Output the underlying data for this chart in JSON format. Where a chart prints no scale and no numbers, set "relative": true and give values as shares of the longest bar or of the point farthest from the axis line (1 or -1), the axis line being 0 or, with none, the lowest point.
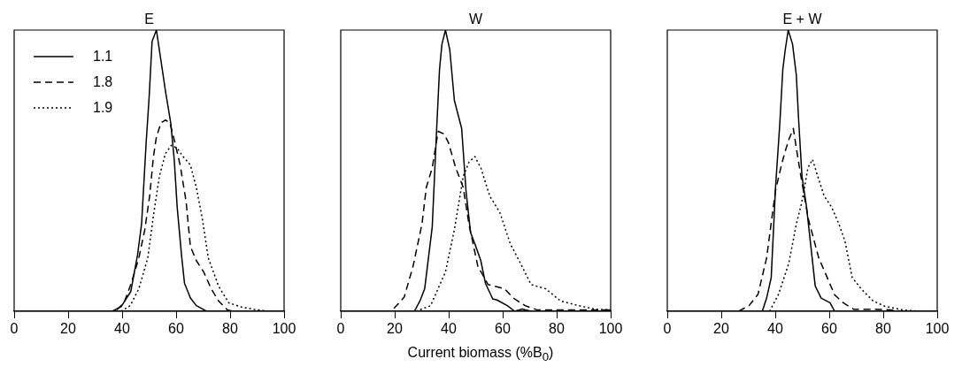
{
  "chart_data": [
    {
      "type": "line",
      "title": "E",
      "relative": true,
      "xlim": [
        0,
        100
      ],
      "xticks": [
        0,
        20,
        40,
        60,
        80,
        100
      ],
      "legend": "top left",
      "grid": false,
      "tick_labels": "x",
      "marker": "none",
      "series": [
        {
          "name": "1.1",
          "color": "#000000",
          "line_style": "solid",
          "x": [
            36.3,
            39.6,
            43.2,
            45.7,
            47.2,
            48.9,
            50.0,
            51.1,
            52.7,
            54.4,
            56.1,
            58.0,
            59.3,
            60.4,
            62.0,
            63.1,
            65.3,
            67.5,
            71.3
          ],
          "values": [
            0,
            0.016,
            0.07,
            0.2,
            0.31,
            0.6,
            0.76,
            0.96,
            1.0,
            0.89,
            0.78,
            0.67,
            0.54,
            0.37,
            0.2,
            0.1,
            0.047,
            0.02,
            0
          ]
        },
        {
          "name": "1.8",
          "color": "#000000",
          "line_style": "dashed",
          "x": [
            38,
            40.7,
            43.4,
            46.2,
            48.4,
            50.2,
            51.6,
            52.7,
            54.4,
            56,
            57.7,
            59.3,
            61.5,
            63.7,
            65.3,
            67.5,
            70.2,
            73,
            75.7,
            79,
            81
          ],
          "values": [
            0.005,
            0.03,
            0.1,
            0.19,
            0.29,
            0.41,
            0.55,
            0.62,
            0.67,
            0.68,
            0.67,
            0.61,
            0.52,
            0.39,
            0.23,
            0.18,
            0.14,
            0.08,
            0.037,
            0.005,
            0
          ]
        },
        {
          "name": "1.9",
          "color": "#000000",
          "line_style": "dotted",
          "x": [
            39.6,
            43,
            46.2,
            49.5,
            51.6,
            53.8,
            56,
            58.2,
            60.4,
            62.6,
            65.3,
            67.5,
            69.7,
            71.9,
            75.7,
            79.5,
            84.5,
            88.9,
            94.3
          ],
          "values": [
            0,
            0.02,
            0.08,
            0.19,
            0.34,
            0.48,
            0.56,
            0.59,
            0.58,
            0.55,
            0.52,
            0.44,
            0.33,
            0.19,
            0.09,
            0.03,
            0.014,
            0.007,
            0
          ]
        }
      ]
    },
    {
      "type": "line",
      "title": "W",
      "xlabel": "Current biomass (%B$_{0}$)",
      "relative": true,
      "xlim": [
        0,
        100
      ],
      "xticks": [
        0,
        20,
        40,
        60,
        80,
        100
      ],
      "grid": false,
      "tick_labels": "x",
      "marker": "none",
      "series": [
        {
          "color": "#000000",
          "line_style": "solid",
          "x": [
            27.3,
            29.5,
            31.1,
            33.9,
            35.5,
            36.6,
            37.5,
            38.8,
            40.4,
            42.1,
            44.8,
            46.4,
            48.1,
            49.7,
            51.9,
            53.6,
            56.3,
            57.9,
            61.7,
            64.5,
            67.2,
            70.5
          ],
          "values": [
            0,
            0.04,
            0.08,
            0.3,
            0.64,
            0.86,
            0.95,
            1.0,
            0.93,
            0.75,
            0.65,
            0.43,
            0.28,
            0.24,
            0.18,
            0.1,
            0.044,
            0.04,
            0.02,
            0,
            0.008,
            0
          ]
        },
        {
          "color": "#000000",
          "line_style": "dashed",
          "x": [
            19.7,
            23.5,
            26.8,
            30.1,
            31.7,
            33.9,
            36.1,
            38.3,
            39.9,
            42.6,
            45.4,
            47.5,
            50.8,
            54.6,
            60.7,
            63.9,
            68.3,
            72.7,
            84.7,
            100
          ],
          "values": [
            0.01,
            0.05,
            0.16,
            0.31,
            0.44,
            0.51,
            0.64,
            0.63,
            0.6,
            0.51,
            0.44,
            0.31,
            0.16,
            0.095,
            0.08,
            0.047,
            0.02,
            0.005,
            0.005,
            0.005
          ]
        },
        {
          "color": "#000000",
          "line_style": "dotted",
          "x": [
            27.9,
            33.3,
            38.8,
            42.1,
            45.4,
            47.5,
            49.7,
            51.9,
            55.2,
            59,
            62.8,
            66.1,
            70.5,
            75.9,
            81.4,
            88,
            94.5,
            100
          ],
          "values": [
            0,
            0.02,
            0.14,
            0.29,
            0.48,
            0.53,
            0.55,
            0.51,
            0.41,
            0.35,
            0.24,
            0.18,
            0.095,
            0.08,
            0.037,
            0.02,
            0.007,
            0.005
          ]
        }
      ]
    },
    {
      "type": "line",
      "title": "E + W",
      "relative": true,
      "xlim": [
        0,
        100
      ],
      "xticks": [
        0,
        20,
        40,
        60,
        80,
        100
      ],
      "grid": false,
      "tick_labels": "x",
      "marker": "none",
      "series": [
        {
          "color": "#000000",
          "line_style": "solid",
          "x": [
            35.2,
            36.8,
            38.5,
            40.1,
            41.7,
            42.8,
            43.7,
            44.8,
            46.4,
            47.8,
            48.6,
            49.9,
            51.6,
            53.2,
            54.8,
            57,
            60.3,
            62
          ],
          "values": [
            0,
            0.047,
            0.12,
            0.44,
            0.67,
            0.86,
            0.93,
            1.0,
            0.95,
            0.84,
            0.69,
            0.48,
            0.37,
            0.23,
            0.09,
            0.047,
            0.03,
            0
          ]
        },
        {
          "color": "#000000",
          "line_style": "dashed",
          "x": [
            26.4,
            30.3,
            33.6,
            36.8,
            40.1,
            42.3,
            43.4,
            45,
            46.7,
            47.8,
            49.5,
            52.2,
            56.1,
            58.8,
            62,
            65.2,
            69.1,
            76.2,
            82.7,
            87.1
          ],
          "values": [
            0,
            0.02,
            0.06,
            0.19,
            0.43,
            0.52,
            0.56,
            0.61,
            0.65,
            0.58,
            0.48,
            0.33,
            0.19,
            0.13,
            0.058,
            0.03,
            0.007,
            0.007,
            0.005,
            0
          ]
        },
        {
          "color": "#000000",
          "line_style": "dotted",
          "x": [
            37.9,
            41.2,
            45,
            47.8,
            49.9,
            52.1,
            53.8,
            55.4,
            58.1,
            60.9,
            63.6,
            65.8,
            68.5,
            71.8,
            76.2,
            80.5,
            87.1,
            94.2
          ],
          "values": [
            0,
            0.06,
            0.17,
            0.31,
            0.39,
            0.51,
            0.54,
            0.49,
            0.41,
            0.37,
            0.31,
            0.25,
            0.12,
            0.08,
            0.037,
            0.018,
            0.005,
            0
          ]
        }
      ]
    }
  ]
}
